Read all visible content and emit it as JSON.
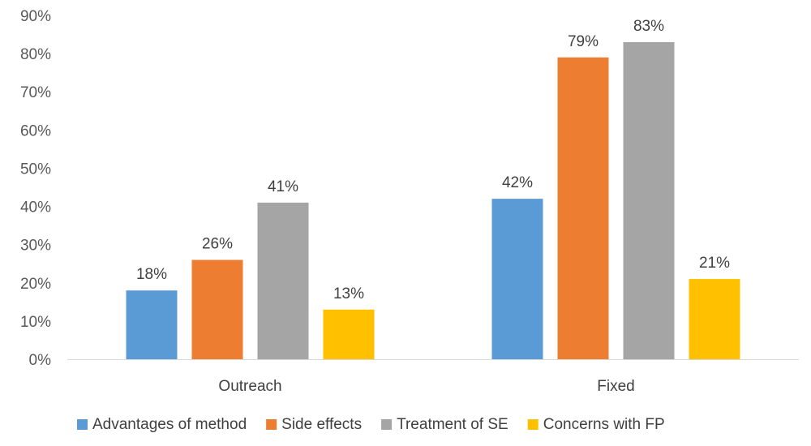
{
  "chart_data": {
    "type": "bar",
    "categories": [
      "Outreach",
      "Fixed"
    ],
    "series": [
      {
        "name": "Advantages of method",
        "color": "#5B9BD5",
        "values": [
          18,
          42
        ]
      },
      {
        "name": "Side effects",
        "color": "#ED7D31",
        "values": [
          26,
          79
        ]
      },
      {
        "name": "Treatment of SE",
        "color": "#A5A5A5",
        "values": [
          41,
          83
        ]
      },
      {
        "name": "Concerns with FP",
        "color": "#FFC000",
        "values": [
          13,
          21
        ]
      }
    ],
    "value_suffix": "%",
    "ylim": [
      0,
      90
    ],
    "yticks": [
      0,
      10,
      20,
      30,
      40,
      50,
      60,
      70,
      80,
      90
    ],
    "title": "",
    "xlabel": "",
    "ylabel": "",
    "grid": false,
    "legend_position": "bottom"
  }
}
